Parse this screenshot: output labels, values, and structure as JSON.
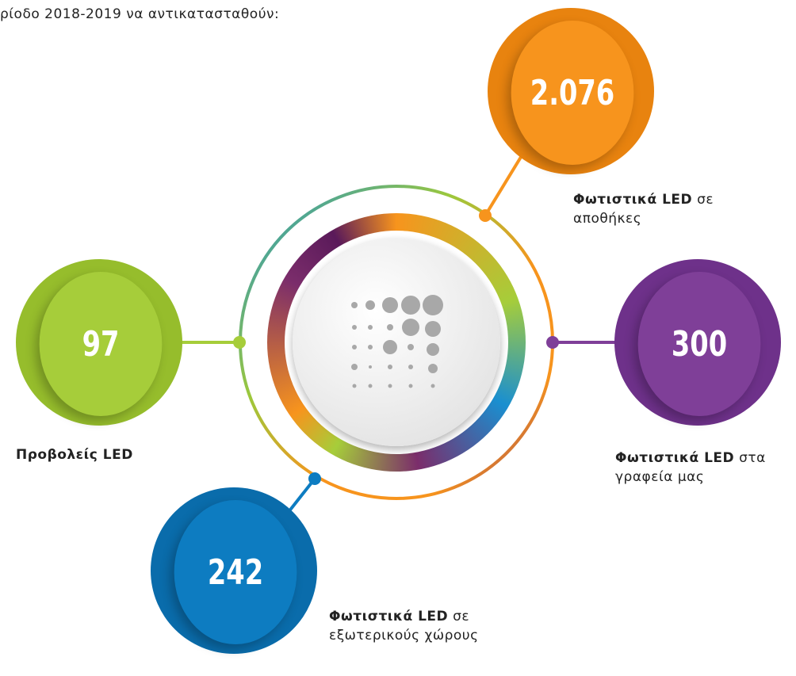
{
  "intro": "ρίοδο 2018-2019 να αντικατασταθούν:",
  "items": [
    {
      "value": "2.076",
      "label_bold": "Φωτιστικά LED",
      "label_rest": "σε",
      "label_line2": "αποθήκες"
    },
    {
      "value": "97",
      "label_bold": "Προβολείς LED"
    },
    {
      "value": "300",
      "label_bold": "Φωτιστικά LED",
      "label_rest": "στα",
      "label_line2": "γραφεία μας"
    },
    {
      "value": "242",
      "label_bold": "Φωτιστικά LED",
      "label_rest": "σε",
      "label_line2": "εξωτερικούς χώρους"
    }
  ]
}
